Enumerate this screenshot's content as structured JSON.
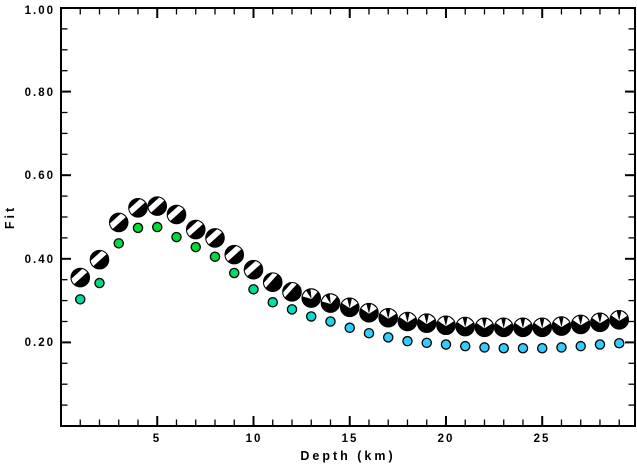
{
  "figure": {
    "background": "#FFFFFF",
    "frame_color": "#000000"
  },
  "chart_data": {
    "type": "scatter",
    "title": "",
    "xlabel": "Depth (km)",
    "ylabel": "Fit",
    "xlim": [
      0,
      29.82
    ],
    "ylim": [
      0,
      1.0
    ],
    "grid": false,
    "legend": "none",
    "x_major_ticks": [
      5,
      10,
      15,
      20,
      25
    ],
    "x_tick_labels": [
      "5",
      "10",
      "15",
      "20",
      "25"
    ],
    "x_minor_tick_interval": 1,
    "y_major_ticks": [
      0.2,
      0.4,
      0.6,
      0.8,
      1.0
    ],
    "y_tick_labels": [
      "0.20",
      "0.40",
      "0.60",
      "0.80",
      "1.00"
    ],
    "y_minor_tick_interval": 0.05,
    "x": [
      1,
      2,
      3,
      4,
      5,
      6,
      7,
      8,
      9,
      10,
      11,
      12,
      13,
      14,
      15,
      16,
      17,
      18,
      19,
      20,
      21,
      22,
      23,
      24,
      25,
      26,
      27,
      28,
      29
    ],
    "series": [
      {
        "name": "beachball markers (focal mechanisms)",
        "marker": "beachball",
        "fill": "#000000",
        "values": [
          0.355,
          0.398,
          0.487,
          0.522,
          0.526,
          0.506,
          0.47,
          0.45,
          0.41,
          0.374,
          0.344,
          0.321,
          0.306,
          0.294,
          0.284,
          0.271,
          0.259,
          0.25,
          0.246,
          0.241,
          0.238,
          0.236,
          0.236,
          0.236,
          0.236,
          0.239,
          0.243,
          0.248,
          0.254
        ],
        "ball_kinds": [
          "band",
          "band",
          "band",
          "band",
          "band",
          "band",
          "band",
          "band",
          "band",
          "band",
          "thin",
          "thin",
          "bflyL",
          "bflyL",
          "bfly",
          "bfly",
          "bfly",
          "bfly",
          "bfly",
          "bfly",
          "bfly",
          "bfly",
          "bfly",
          "bfly",
          "bfly",
          "bfly",
          "bfly",
          "bfly",
          "bfly"
        ]
      },
      {
        "name": "colored dots",
        "marker": "dot",
        "values": [
          0.303,
          0.342,
          0.437,
          0.474,
          0.476,
          0.452,
          0.428,
          0.405,
          0.366,
          0.327,
          0.296,
          0.279,
          0.262,
          0.25,
          0.235,
          0.222,
          0.212,
          0.203,
          0.199,
          0.195,
          0.191,
          0.188,
          0.186,
          0.186,
          0.186,
          0.188,
          0.191,
          0.195,
          0.198
        ],
        "colors": [
          "#00D9A0",
          "#00D77E",
          "#00D846",
          "#00DA32",
          "#00DA32",
          "#00DA32",
          "#00DA32",
          "#00DA3C",
          "#00DB66",
          "#00DD92",
          "#00DFAC",
          "#00E0C2",
          "#06DDD8",
          "#1ED4EE",
          "#2CCFFA",
          "#33CCFF",
          "#33CCFF",
          "#33CCFF",
          "#33CCFF",
          "#33CCFF",
          "#33CCFF",
          "#33CCFF",
          "#33CCFF",
          "#33CCFF",
          "#33CCFF",
          "#33CCFF",
          "#33CCFF",
          "#33CCFF",
          "#33CCFF"
        ]
      }
    ]
  }
}
